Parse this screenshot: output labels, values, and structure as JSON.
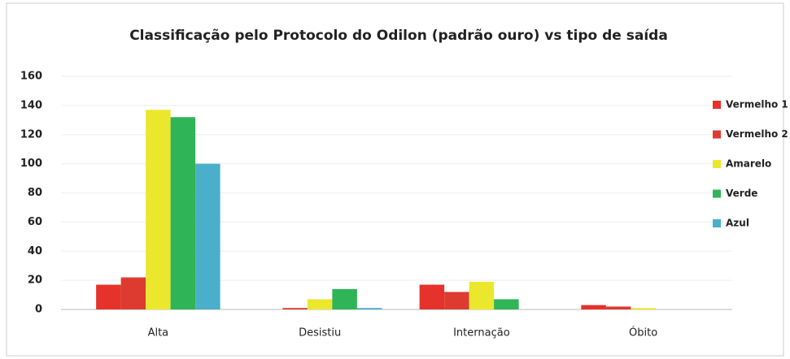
{
  "chart_data": {
    "type": "bar",
    "title": "Classificação pelo Protocolo do Odilon (padrão ouro) vs tipo de saída",
    "categories": [
      "Alta",
      "Desistiu",
      "Internação",
      "Óbito"
    ],
    "series": [
      {
        "name": "Vermelho 1",
        "color": "#e5322b",
        "values": [
          17,
          0,
          17,
          3
        ]
      },
      {
        "name": "Vermelho 2",
        "color": "#de3b30",
        "values": [
          22,
          1,
          12,
          2
        ]
      },
      {
        "name": "Amarelo",
        "color": "#ebe72c",
        "values": [
          137,
          7,
          19,
          1
        ]
      },
      {
        "name": "Verde",
        "color": "#2fb457",
        "values": [
          132,
          14,
          7,
          0
        ]
      },
      {
        "name": "Azul",
        "color": "#4aafca",
        "values": [
          100,
          1,
          0,
          0
        ]
      }
    ],
    "ylim": [
      0,
      160
    ],
    "yticks": [
      0,
      20,
      40,
      60,
      80,
      100,
      120,
      140,
      160
    ],
    "grid": true,
    "legend": "right"
  }
}
